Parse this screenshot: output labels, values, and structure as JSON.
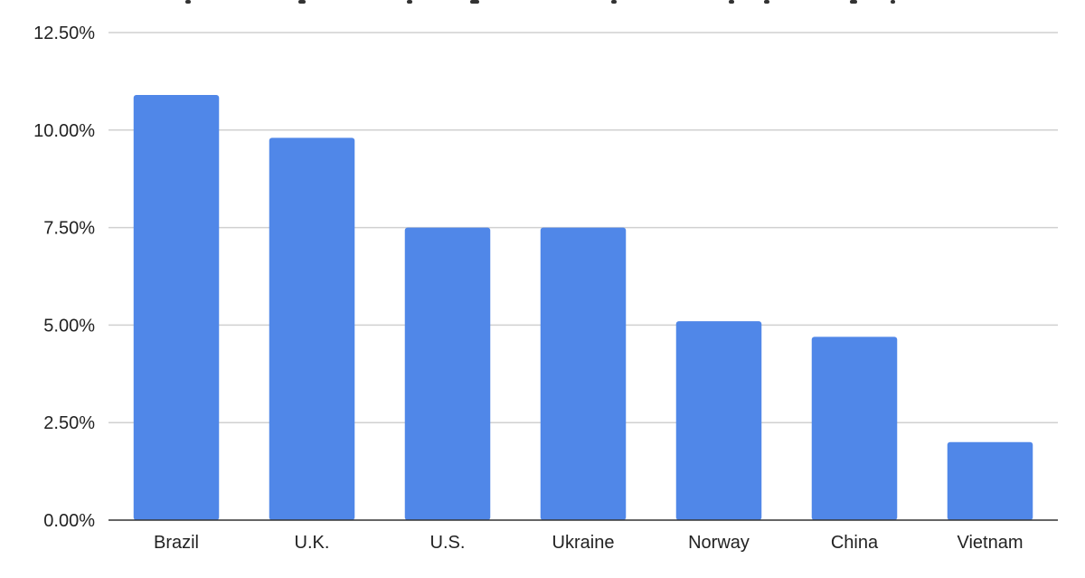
{
  "chart_data": {
    "type": "bar",
    "categories": [
      "Brazil",
      "U.K.",
      "U.S.",
      "Ukraine",
      "Norway",
      "China",
      "Vietnam"
    ],
    "values": [
      10.9,
      9.8,
      7.5,
      7.5,
      5.1,
      4.7,
      2.0
    ],
    "value_unit": "%",
    "ylim": [
      0,
      12.5
    ],
    "yticks": [
      0,
      2.5,
      5,
      7.5,
      10,
      12.5
    ],
    "ytick_labels": [
      "0.00%",
      "2.50%",
      "5.00%",
      "7.50%",
      "10.00%",
      "12.50%"
    ],
    "grid": true,
    "bar_color": "#5087e8",
    "title": "",
    "xlabel": "",
    "ylabel": ""
  }
}
